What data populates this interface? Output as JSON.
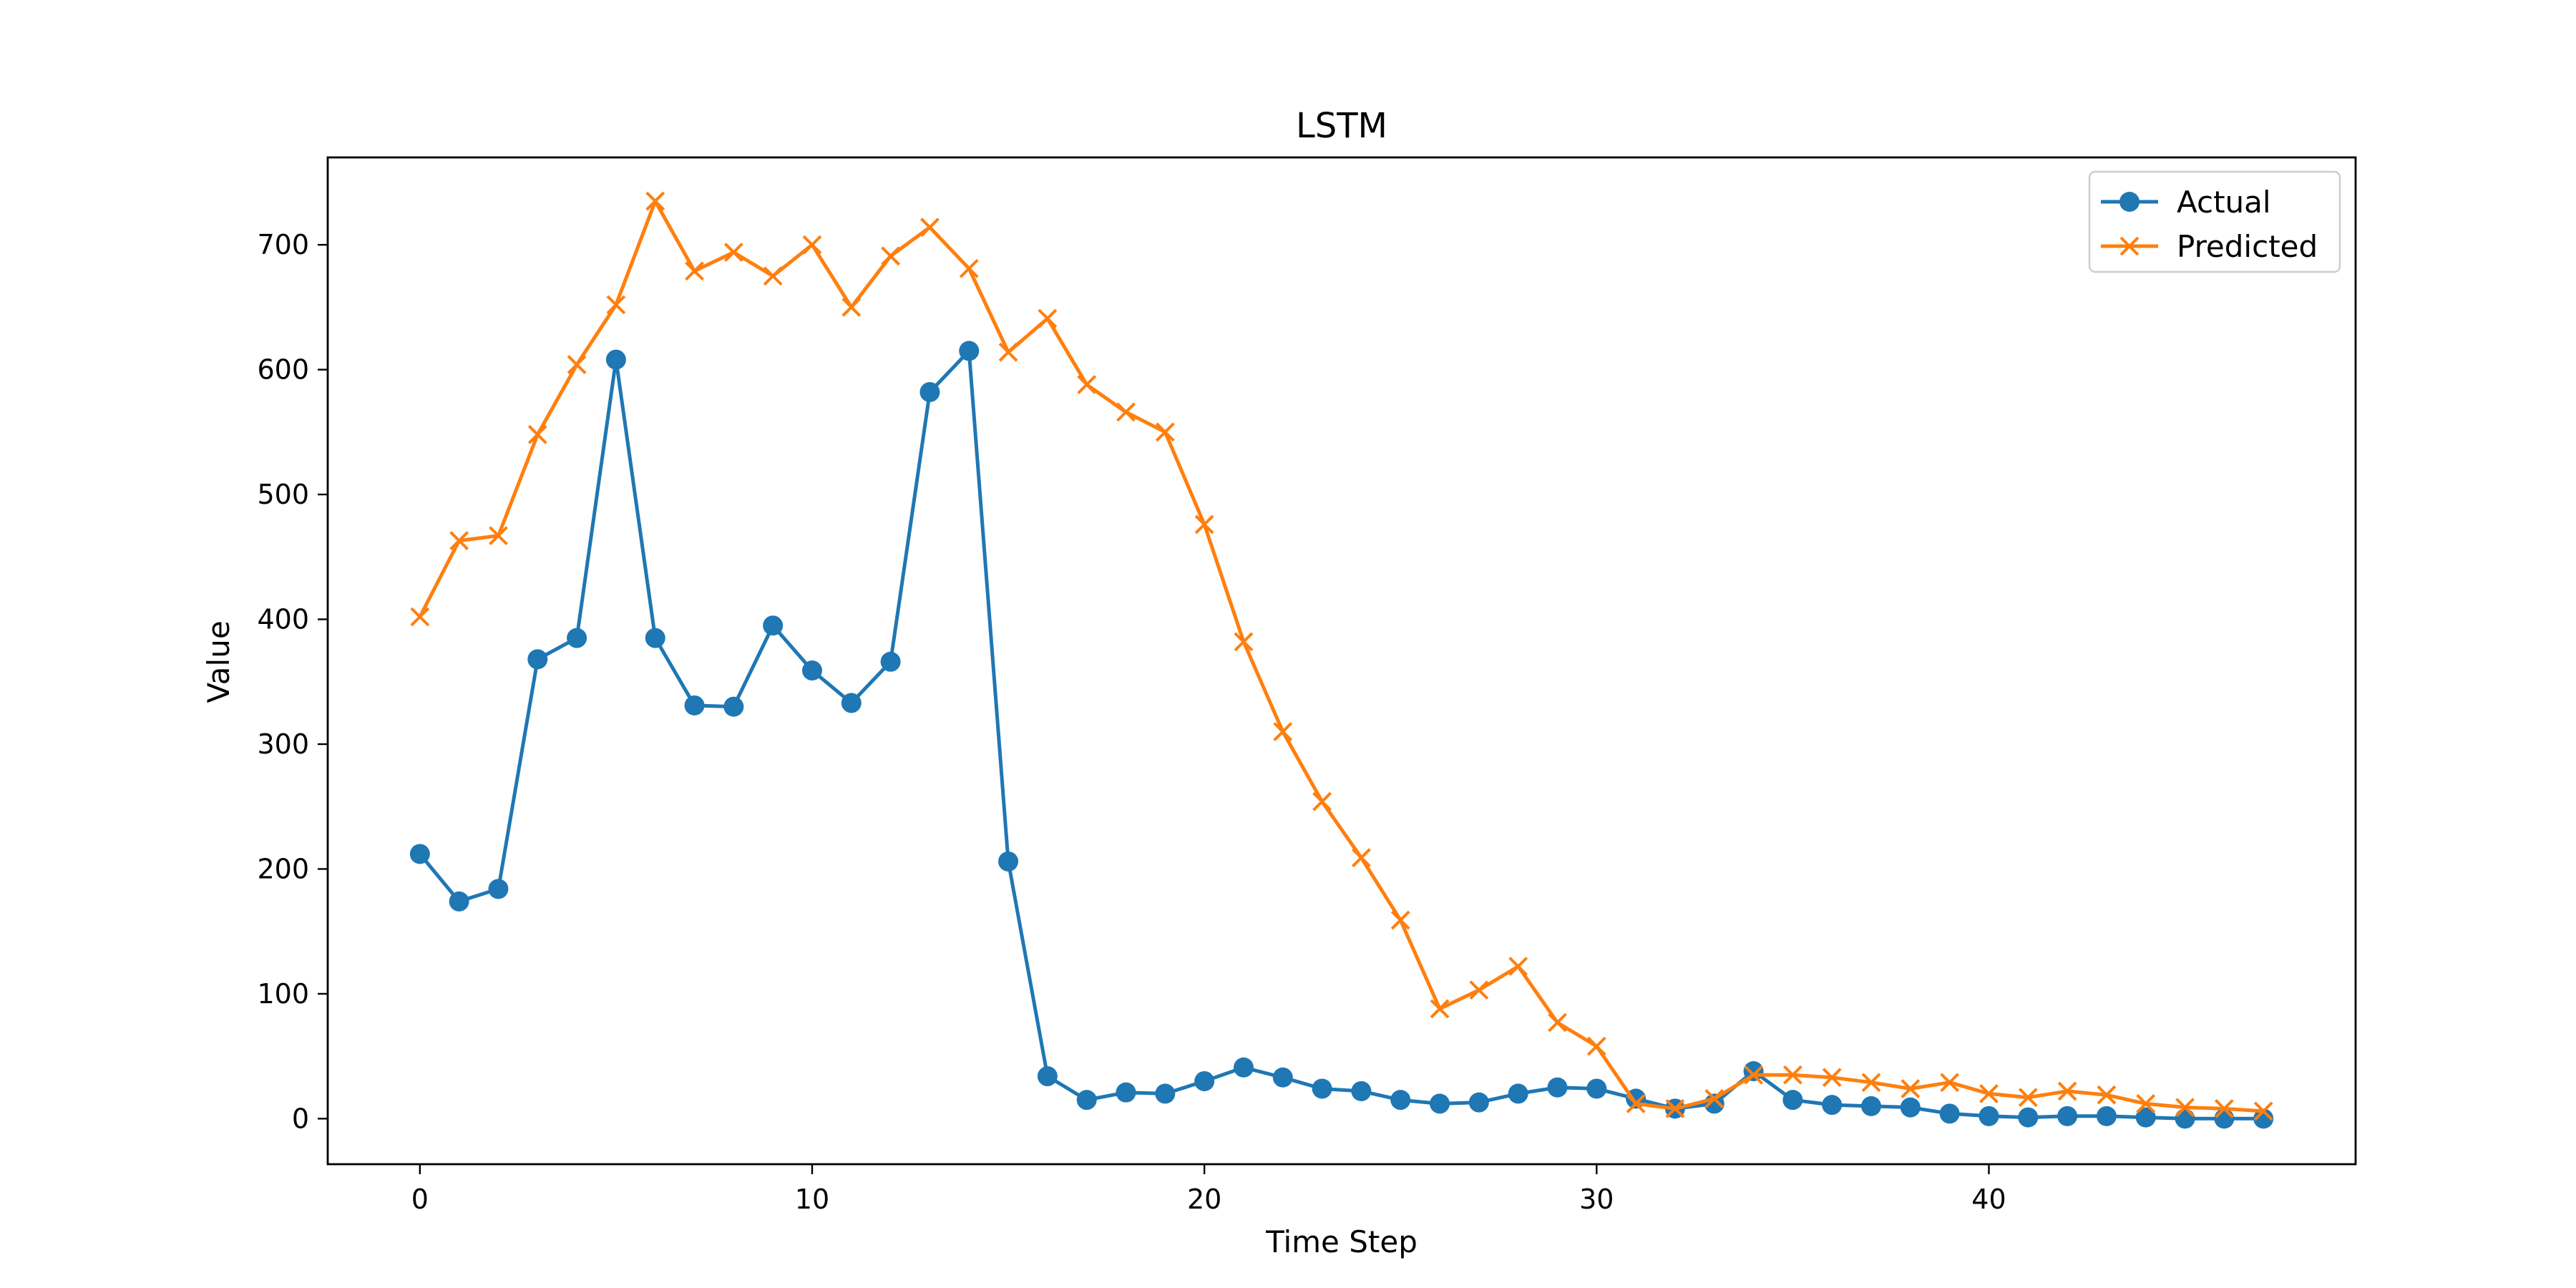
{
  "chart_data": {
    "type": "line",
    "title": "LSTM",
    "xlabel": "Time Step",
    "ylabel": "Value",
    "xlim": [
      -2.35,
      49.35
    ],
    "ylim": [
      -36.5,
      770
    ],
    "xticks": [
      0,
      10,
      20,
      30,
      40
    ],
    "yticks": [
      0,
      100,
      200,
      300,
      400,
      500,
      600,
      700
    ],
    "legend_position": "top-right",
    "grid": false,
    "x": [
      0,
      1,
      2,
      3,
      4,
      5,
      6,
      7,
      8,
      9,
      10,
      11,
      12,
      13,
      14,
      15,
      16,
      17,
      18,
      19,
      20,
      21,
      22,
      23,
      24,
      25,
      26,
      27,
      28,
      29,
      30,
      31,
      32,
      33,
      34,
      35,
      36,
      37,
      38,
      39,
      40,
      41,
      42,
      43,
      44,
      45,
      46,
      47
    ],
    "series": [
      {
        "name": "Actual",
        "color": "#1f77b4",
        "marker": "circle",
        "values": [
          212,
          174,
          184,
          368,
          385,
          608,
          385,
          331,
          330,
          395,
          359,
          333,
          366,
          582,
          615,
          206,
          34,
          15,
          21,
          20,
          30,
          41,
          33,
          24,
          22,
          15,
          12,
          13,
          20,
          25,
          24,
          16,
          8,
          12,
          38,
          15,
          11,
          10,
          9,
          4,
          2,
          1,
          2,
          2,
          1,
          0,
          0,
          0
        ]
      },
      {
        "name": "Predicted",
        "color": "#ff7f0e",
        "marker": "x",
        "values": [
          402,
          463,
          467,
          548,
          604,
          652,
          735,
          679,
          694,
          675,
          700,
          650,
          691,
          714,
          681,
          614,
          641,
          588,
          566,
          550,
          476,
          382,
          310,
          254,
          209,
          159,
          88,
          103,
          122,
          77,
          58,
          12,
          8,
          16,
          35,
          35,
          33,
          29,
          24,
          29,
          20,
          17,
          22,
          19,
          12,
          9,
          8,
          6
        ]
      }
    ]
  }
}
